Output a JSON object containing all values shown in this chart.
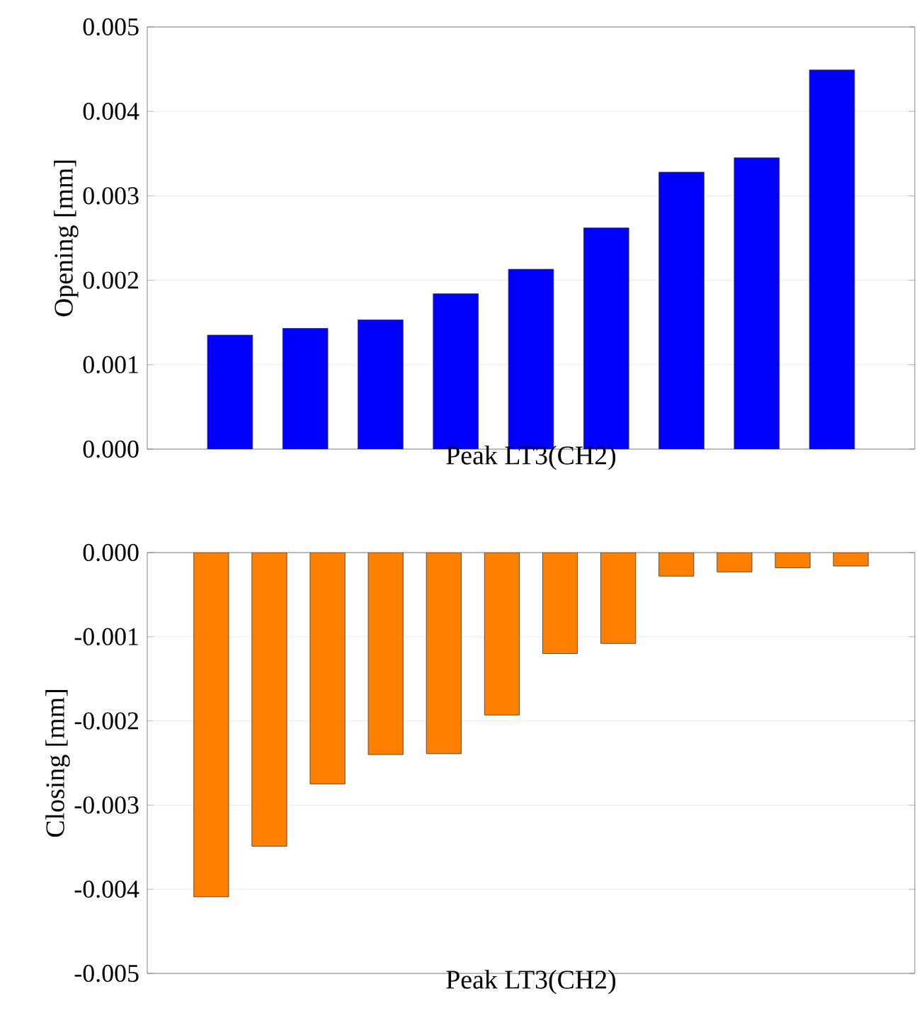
{
  "chart_data": [
    {
      "type": "bar",
      "xlabel": "Peak LT3(CH2)",
      "ylabel": "Opening [mm]",
      "categories": [
        null,
        null,
        null,
        null,
        null,
        null,
        null,
        null,
        null
      ],
      "values": [
        0.00135,
        0.00143,
        0.00153,
        0.00184,
        0.00213,
        0.00262,
        0.00328,
        0.00345,
        0.00449
      ],
      "color": "#0000ff",
      "ylim": [
        0,
        0.005
      ],
      "yticks": [
        {
          "value": 0,
          "label": "0.000"
        },
        0.001,
        0.002,
        0.003,
        0.004,
        0.005
      ],
      "grid": "y",
      "tick_labels": "y"
    },
    {
      "type": "bar",
      "xlabel": "Peak LT3(CH2)",
      "ylabel": "Closing [mm]",
      "categories": [
        null,
        null,
        null,
        null,
        null,
        null,
        null,
        null,
        null,
        null,
        null,
        null
      ],
      "values": [
        -0.00409,
        -0.00349,
        -0.00275,
        -0.0024,
        -0.00239,
        -0.00193,
        -0.0012,
        -0.00108,
        -0.00028,
        -0.00023,
        -0.00018,
        -0.00016
      ],
      "color": "#ff8000",
      "ylim": [
        -0.005,
        0
      ],
      "yticks": [
        -0.005,
        -0.004,
        -0.003,
        -0.002,
        -0.001,
        {
          "value": 0,
          "label": "0.000"
        }
      ],
      "grid": "y",
      "tick_labels": "y"
    }
  ]
}
